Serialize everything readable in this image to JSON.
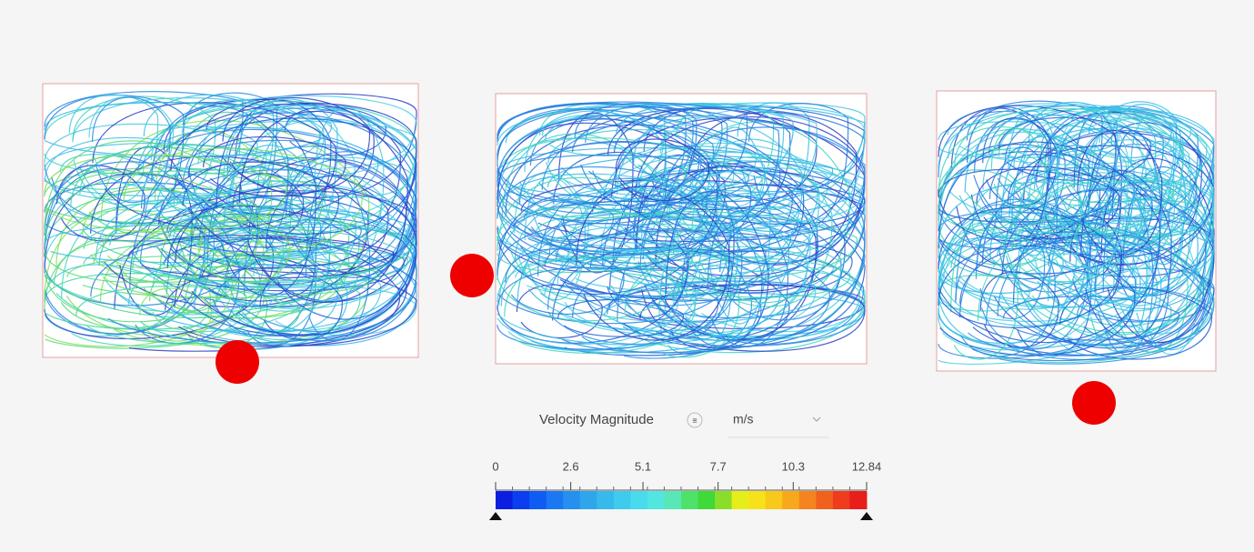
{
  "legend": {
    "title": "Velocity Magnitude",
    "unit": "m/s",
    "ticks": [
      0,
      2.6,
      5.1,
      7.7,
      10.3,
      12.84
    ],
    "colors": [
      "#0a1fe0",
      "#0b3ef0",
      "#0f5cf5",
      "#1a78f2",
      "#2590ee",
      "#2fa6ec",
      "#37b9ec",
      "#3fcbee",
      "#48dbee",
      "#52e6e0",
      "#58e8b8",
      "#4fe26a",
      "#3fd93a",
      "#8ade2a",
      "#e6ee1a",
      "#f6e21a",
      "#f8c81a",
      "#f8a81c",
      "#f6841e",
      "#f2601e",
      "#ee3c1c",
      "#e81e1a"
    ]
  }
}
